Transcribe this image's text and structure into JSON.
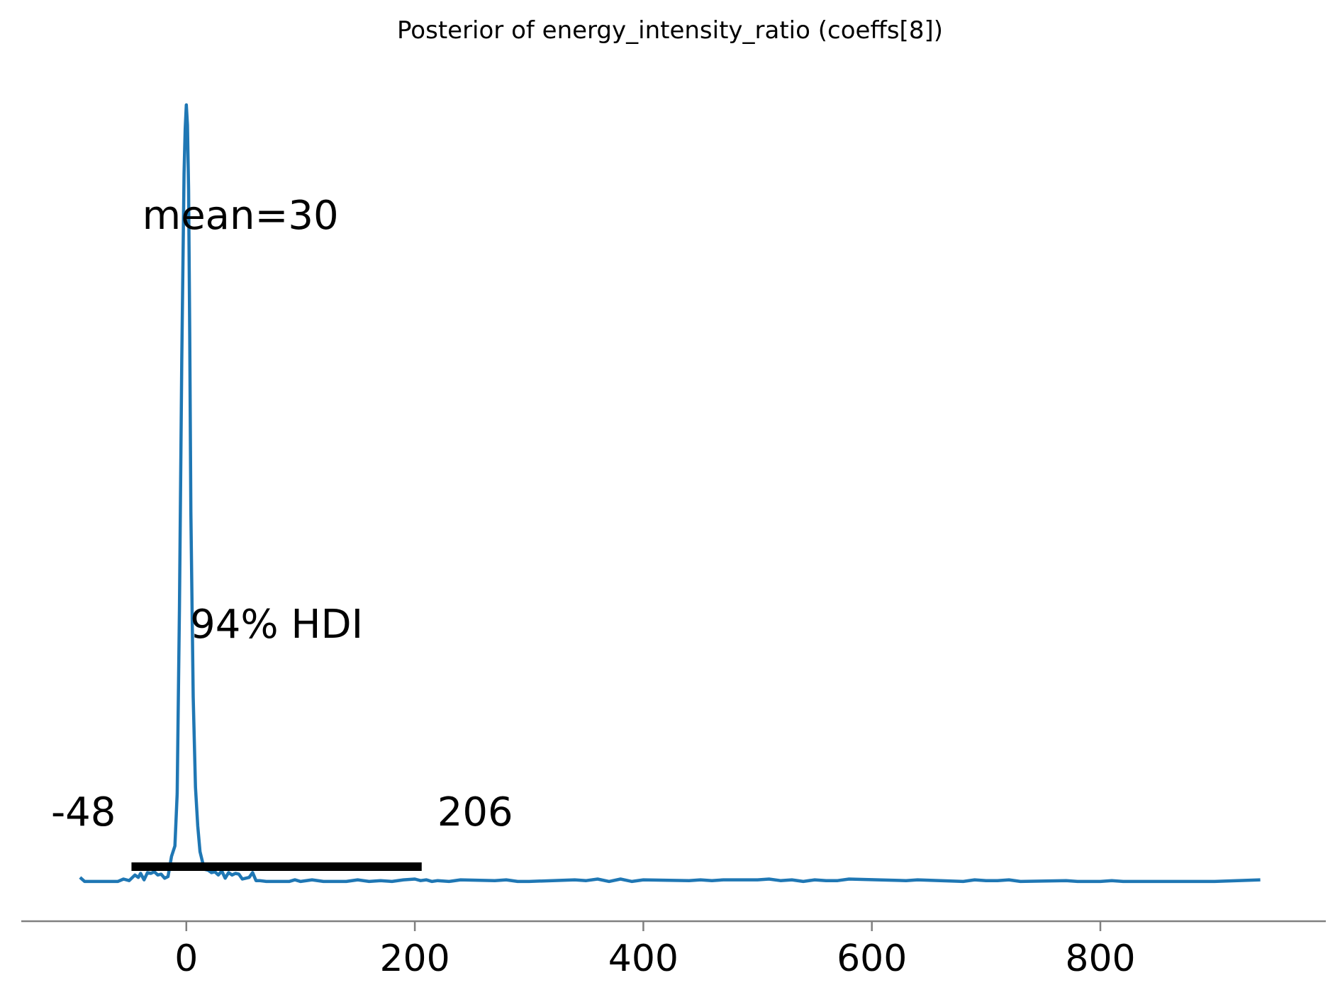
{
  "chart_data": {
    "type": "line",
    "title": "Posterior of energy_intensity_ratio (coeffs[8])",
    "xlabel": "",
    "ylabel": "",
    "xlim": [
      -145,
      995
    ],
    "ylim": [
      0,
      1
    ],
    "x_ticks": [
      0,
      200,
      400,
      600,
      800
    ],
    "x_tick_labels": [
      "0",
      "200",
      "400",
      "600",
      "800"
    ],
    "grid": false,
    "y_axis_visible": false,
    "series": [
      {
        "color": "#1f77b4",
        "x": [
          -93,
          -89,
          -85,
          -60,
          -55,
          -50,
          -45,
          -42,
          -40,
          -37,
          -34,
          -31,
          -28,
          -25,
          -22,
          -19,
          -16,
          -13,
          -10,
          -8,
          -6,
          -4,
          -2,
          -1,
          0,
          1,
          2,
          3,
          4,
          6,
          8,
          10,
          12,
          14,
          16,
          19,
          22,
          25,
          28,
          31,
          34,
          37,
          40,
          43,
          46,
          49,
          52,
          55,
          58,
          61,
          64,
          70,
          80,
          90,
          95,
          100,
          110,
          120,
          130,
          140,
          150,
          160,
          170,
          180,
          190,
          200,
          205,
          210,
          215,
          220,
          230,
          240,
          270,
          280,
          290,
          300,
          340,
          350,
          360,
          370,
          380,
          390,
          400,
          440,
          450,
          460,
          470,
          500,
          510,
          520,
          530,
          540,
          550,
          560,
          570,
          580,
          630,
          640,
          680,
          690,
          700,
          710,
          720,
          730,
          770,
          780,
          800,
          810,
          820,
          850,
          900,
          940
        ],
        "y": [
          0.006,
          0.001,
          0.001,
          0.001,
          0.004,
          0.002,
          0.009,
          0.006,
          0.011,
          0.003,
          0.012,
          0.011,
          0.013,
          0.009,
          0.01,
          0.005,
          0.007,
          0.032,
          0.045,
          0.11,
          0.34,
          0.65,
          0.88,
          0.935,
          0.965,
          0.94,
          0.86,
          0.68,
          0.46,
          0.23,
          0.118,
          0.07,
          0.038,
          0.026,
          0.016,
          0.015,
          0.012,
          0.013,
          0.009,
          0.014,
          0.005,
          0.012,
          0.009,
          0.011,
          0.01,
          0.004,
          0.005,
          0.006,
          0.012,
          0.002,
          0.002,
          0.001,
          0.001,
          0.001,
          0.003,
          0.001,
          0.003,
          0.001,
          0.001,
          0.001,
          0.003,
          0.001,
          0.002,
          0.001,
          0.003,
          0.004,
          0.002,
          0.003,
          0.001,
          0.002,
          0.001,
          0.003,
          0.002,
          0.003,
          0.001,
          0.001,
          0.003,
          0.002,
          0.004,
          0.001,
          0.004,
          0.001,
          0.003,
          0.002,
          0.003,
          0.002,
          0.003,
          0.003,
          0.004,
          0.002,
          0.003,
          0.001,
          0.003,
          0.002,
          0.002,
          0.004,
          0.002,
          0.003,
          0.001,
          0.003,
          0.002,
          0.002,
          0.003,
          0.001,
          0.002,
          0.001,
          0.001,
          0.002,
          0.001,
          0.001,
          0.001,
          0.003
        ]
      }
    ],
    "annotations": {
      "mean_label": "mean=30",
      "hdi_label": "94% HDI",
      "hdi_low": -48,
      "hdi_high": 206,
      "hdi_low_label": "-48",
      "hdi_high_label": "206"
    }
  }
}
